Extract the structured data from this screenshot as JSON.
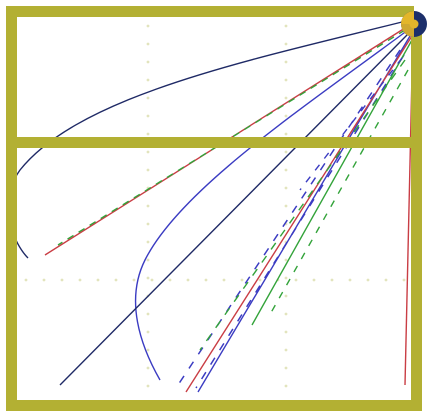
{
  "colors": {
    "background": "#ffffff",
    "frame": "#b3b033",
    "grid_dots": "#e2e4bd",
    "orb_dark": "#1c2f6a",
    "orb_light": "#e3b62a",
    "line_navy": "#1f2a66",
    "line_blue": "#3b3cc2",
    "line_red": "#c93d44",
    "line_green": "#33a33a"
  },
  "icon": {
    "orb": "yellow-navy-orb-icon"
  }
}
